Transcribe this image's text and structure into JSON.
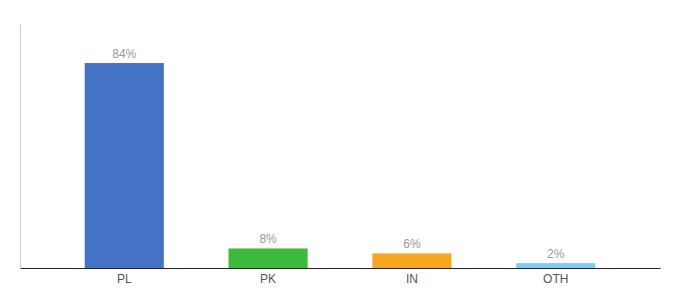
{
  "chart_data": {
    "type": "bar",
    "categories": [
      "PL",
      "PK",
      "IN",
      "OTH"
    ],
    "values": [
      84,
      8,
      6,
      2
    ],
    "value_labels": [
      "84%",
      "8%",
      "6%",
      "2%"
    ],
    "colors": [
      "#4472c4",
      "#3dba3d",
      "#f5a623",
      "#7ecef4"
    ],
    "ylim": [
      0,
      100
    ],
    "data_labels": true,
    "tick_labels": "x"
  }
}
